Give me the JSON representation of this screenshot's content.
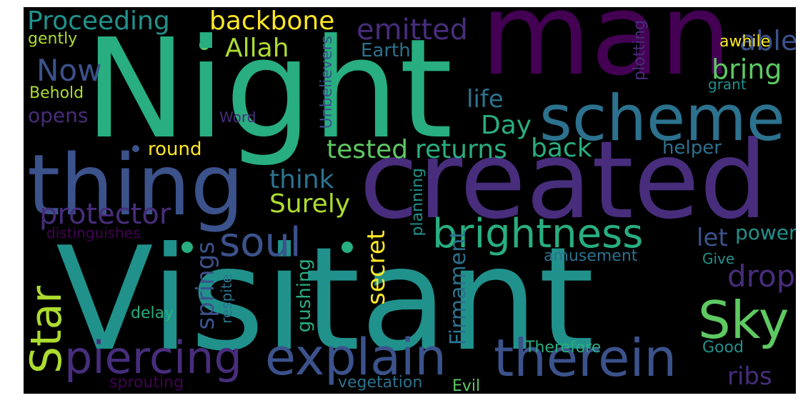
{
  "wordcloud": {
    "palette": {
      "background": "#000000",
      "dark_purple": "#440154",
      "indigo": "#472d7b",
      "slate_blue": "#3b528b",
      "steel_blue": "#2c728e",
      "teal": "#21918c",
      "green_teal": "#28ae80",
      "green": "#5ec962",
      "yellow_green": "#addc30",
      "yellow": "#fde725"
    },
    "words": {
      "night": "Night",
      "man": "man",
      "visitant": "Visitant",
      "created": "created",
      "thing": "thing",
      "scheme": "scheme",
      "brightness": "brightness",
      "therein": "therein",
      "explain": "explain",
      "piercing": "piercing",
      "star": "Star",
      "sky": "Sky",
      "soul": "soul",
      "protector": "protector",
      "proceeding": "Proceeding",
      "backbone": "backbone",
      "emitted": "emitted",
      "able": "able",
      "allah": "Allah",
      "now": "Now",
      "earth": "Earth",
      "bring": "bring",
      "awhile": "awhile",
      "gently": "gently",
      "plotting": "plotting",
      "grant": "grant",
      "behold": "Behold",
      "life": "life",
      "opens": "opens",
      "word": "Word",
      "unbelievers": "Unbelievers",
      "day": "Day",
      "round": "round",
      "tested": "tested",
      "returns": "returns",
      "back": "back",
      "helper": "helper",
      "think": "think",
      "surely": "Surely",
      "let": "let",
      "power": "power",
      "distinguishes": "distinguishes",
      "planning": "planning",
      "drop": "drop",
      "springs": "springs",
      "secret": "secret",
      "amusement": "amusement",
      "give": "Give",
      "gushing": "gushing",
      "respite": "respite",
      "delay": "delay",
      "firmament": "Firmament",
      "therefore": "Therefore",
      "good": "Good",
      "ribs": "ribs",
      "sprouting": "sprouting",
      "vegetation": "vegetation",
      "evil": "Evil"
    }
  }
}
